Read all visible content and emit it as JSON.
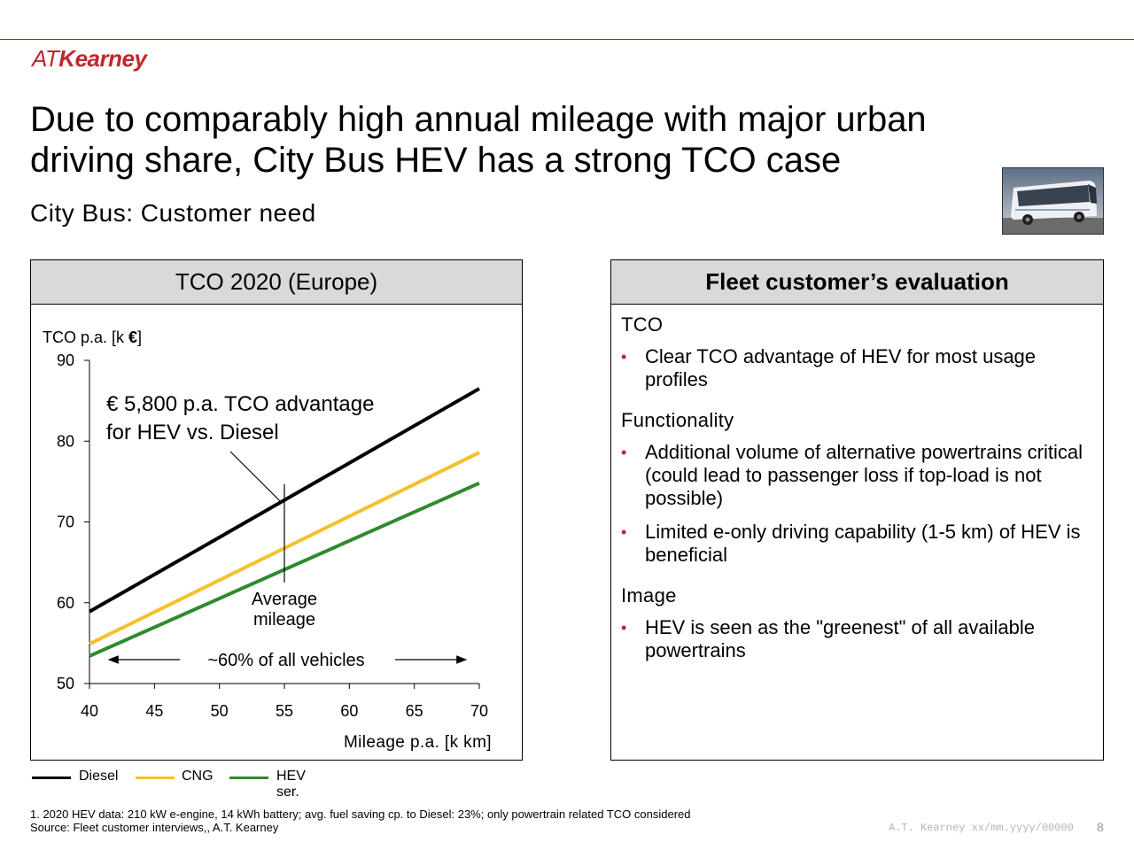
{
  "logo": {
    "part1": "AT",
    "part2": "Kearney"
  },
  "title": "Due to comparably high annual mileage with major urban driving share, City Bus HEV has a strong TCO case",
  "subtitle": "City Bus: Customer need",
  "left_panel": {
    "header": "TCO 2020 (Europe)"
  },
  "right_panel": {
    "header": "Fleet customer’s evaluation",
    "sections": [
      {
        "heading": "TCO",
        "bullets": [
          "Clear TCO advantage of HEV for most usage profiles"
        ]
      },
      {
        "heading": "Functionality",
        "bullets": [
          "Additional volume of alternative powertrains critical (could lead to passenger loss if top-load is not possible)",
          "Limited e-only driving capability (1-5 km) of HEV is beneficial"
        ]
      },
      {
        "heading": "Image",
        "bullets": [
          "HEV is seen as the \"greenest\" of all available powertrains"
        ]
      }
    ],
    "bullet_symbol": "•"
  },
  "chart_data": {
    "type": "line",
    "ylabel_prefix": "TCO p.a. [k ",
    "ylabel_unit": "€",
    "ylabel_suffix": "]",
    "xlabel": "Mileage p.a. [k km]",
    "xlim": [
      40,
      70
    ],
    "ylim": [
      50,
      90
    ],
    "xticks": [
      40,
      45,
      50,
      55,
      60,
      65,
      70
    ],
    "yticks": [
      50,
      60,
      70,
      80,
      90
    ],
    "series": [
      {
        "name": "Diesel",
        "color": "#000000",
        "x": [
          40,
          70
        ],
        "y": [
          58.9,
          86.5
        ]
      },
      {
        "name": "CNG",
        "color": "#f2c12e",
        "x": [
          40,
          70
        ],
        "y": [
          54.9,
          78.6
        ]
      },
      {
        "name": "HEV ser.",
        "color": "#2e8b2e",
        "x": [
          40,
          70
        ],
        "y": [
          53.4,
          74.8
        ]
      }
    ],
    "annotations": {
      "advantage_line1": "€ 5,800 p.a. TCO advantage",
      "advantage_line2": "for HEV vs. Diesel",
      "average_line1": "Average",
      "average_line2": "mileage",
      "average_x": 55,
      "range_text": "~60% of all vehicles"
    }
  },
  "footnote": {
    "line1": "1.  2020 HEV data: 210 kW e-engine, 14 kWh battery; avg. fuel saving cp. to Diesel: 23%; only powertrain related TCO considered",
    "line2": "Source: Fleet customer interviews,, A.T. Kearney"
  },
  "footer_code": "A.T. Kearney xx/mm.yyyy/00000",
  "page_number": "8"
}
